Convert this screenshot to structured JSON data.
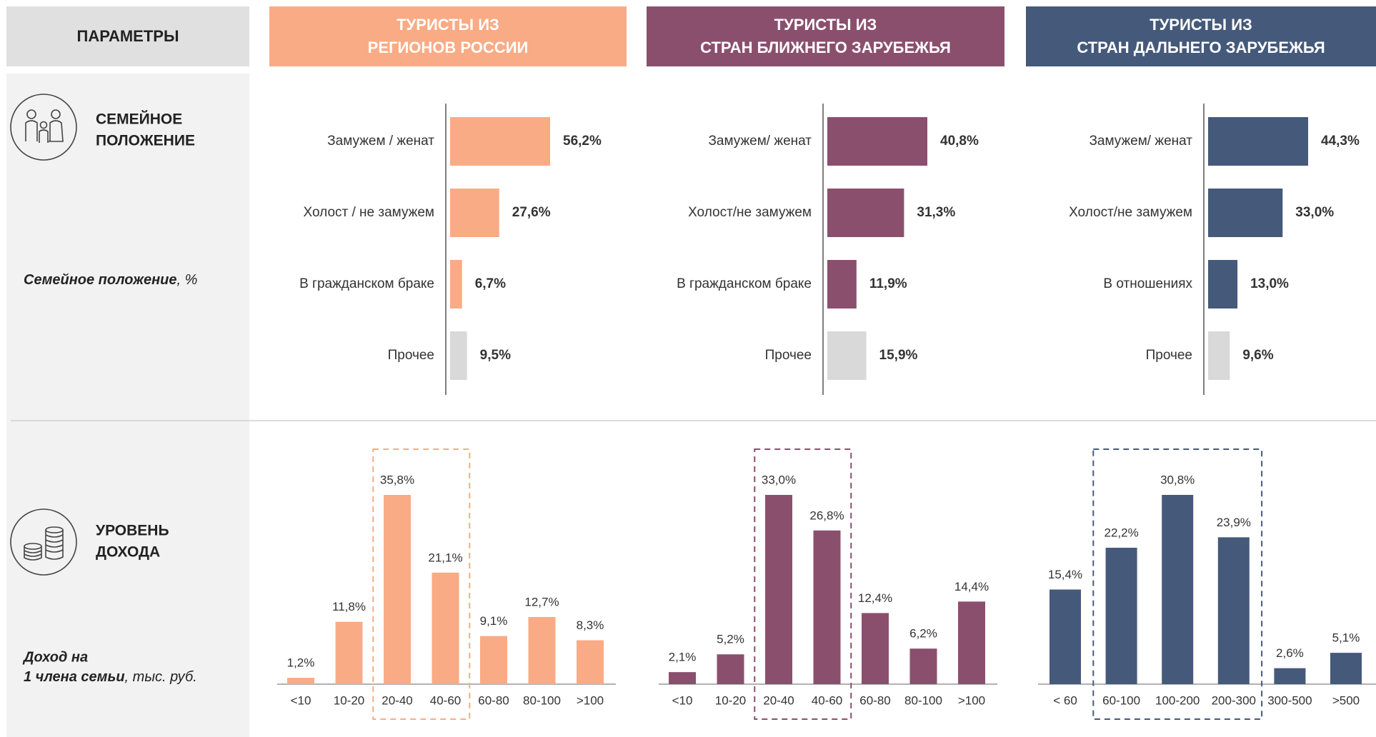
{
  "header": {
    "parameters": "ПАРАМЕТРЫ",
    "columns": [
      {
        "line1": "ТУРИСТЫ ИЗ",
        "line2": "РЕГИОНОВ РОССИИ",
        "color": "#f9ab85"
      },
      {
        "line1": "ТУРИСТЫ ИЗ",
        "line2": "СТРАН БЛИЖНЕГО ЗАРУБЕЖЬЯ",
        "color": "#8b4f6e"
      },
      {
        "line1": "ТУРИСТЫ ИЗ",
        "line2": "СТРАН ДАЛЬНЕГО ЗАРУБЕЖЬЯ",
        "color": "#455a7a"
      }
    ]
  },
  "rows": [
    {
      "title1": "СЕМЕЙНОЕ",
      "title2": "ПОЛОЖЕНИЕ",
      "note_bold": "Семейное положение",
      "note_rest": ", %"
    },
    {
      "title1": "УРОВЕНЬ",
      "title2": "ДОХОДА",
      "note_bold": "Доход на",
      "note_bold2": "1 члена семьи",
      "note_rest": ", тыс. руб."
    }
  ],
  "chart_data": [
    {
      "type": "hbar",
      "categories": [
        "Замужем / женат",
        "Холост / не замужем",
        "В гражданском браке",
        "Прочее"
      ],
      "values": [
        56.2,
        27.6,
        6.7,
        9.5
      ],
      "value_labels": [
        "56,2%",
        "27,6%",
        "6,7%",
        "9,5%"
      ],
      "colors": [
        "#f9ab85",
        "#f9ab85",
        "#f9ab85",
        "#d9d9d9"
      ]
    },
    {
      "type": "hbar",
      "categories": [
        "Замужем/ женат",
        "Холост/не замужем",
        "В гражданском браке",
        "Прочее"
      ],
      "values": [
        40.8,
        31.3,
        11.9,
        15.9
      ],
      "value_labels": [
        "40,8%",
        "31,3%",
        "11,9%",
        "15,9%"
      ],
      "colors": [
        "#8b4f6e",
        "#8b4f6e",
        "#8b4f6e",
        "#d9d9d9"
      ]
    },
    {
      "type": "hbar",
      "categories": [
        "Замужем/ женат",
        "Холост/не замужем",
        "В отношениях",
        "Прочее"
      ],
      "values": [
        44.3,
        33.0,
        13.0,
        9.6
      ],
      "value_labels": [
        "44,3%",
        "33,0%",
        "13,0%",
        "9,6%"
      ],
      "colors": [
        "#455a7a",
        "#455a7a",
        "#455a7a",
        "#d9d9d9"
      ]
    },
    {
      "type": "bar",
      "categories": [
        "<10",
        "10-20",
        "20-40",
        "40-60",
        "60-80",
        "80-100",
        ">100"
      ],
      "values": [
        1.2,
        11.8,
        35.8,
        21.1,
        9.1,
        12.7,
        8.3
      ],
      "value_labels": [
        "1,2%",
        "11,8%",
        "35,8%",
        "21,1%",
        "9,1%",
        "12,7%",
        "8,3%"
      ],
      "color": "#f9ab85"
    },
    {
      "type": "bar",
      "categories": [
        "<10",
        "10-20",
        "20-40",
        "40-60",
        "60-80",
        "80-100",
        ">100"
      ],
      "values": [
        2.1,
        5.2,
        33.0,
        26.8,
        12.4,
        6.2,
        14.4
      ],
      "value_labels": [
        "2,1%",
        "5,2%",
        "33,0%",
        "26,8%",
        "12,4%",
        "6,2%",
        "14,4%"
      ],
      "color": "#8b4f6e"
    },
    {
      "type": "bar",
      "categories": [
        "< 60",
        "60-100",
        "100-200",
        "200-300",
        "300-500",
        ">500"
      ],
      "values": [
        15.4,
        22.2,
        30.8,
        23.9,
        2.6,
        5.1
      ],
      "value_labels": [
        "15,4%",
        "22,2%",
        "30,8%",
        "23,9%",
        "2,6%",
        "5,1%"
      ],
      "color": "#455a7a"
    }
  ]
}
